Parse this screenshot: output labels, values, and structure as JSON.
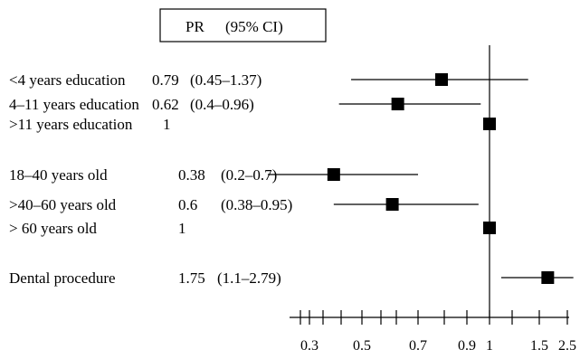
{
  "chart_data": {
    "type": "forest",
    "header": {
      "pr_label": "PR",
      "ci_label": "(95% CI)"
    },
    "x_scale": "log",
    "xlim": [
      0.25,
      2.7
    ],
    "reference_value": 1,
    "tick_labels": [
      "0.3",
      "0.5",
      "0.7",
      "0.9",
      "1",
      "1.5",
      "2.5"
    ],
    "tick_values": [
      0.3,
      0.5,
      0.7,
      0.9,
      1.0,
      1.5,
      2.5
    ],
    "rows": [
      {
        "label": "<4 years education",
        "pr_text": "0.79",
        "ci_text": "(0.45–1.37)",
        "pr": 0.79,
        "ci_low": 0.45,
        "ci_high": 1.37
      },
      {
        "label": "4–11 years education",
        "pr_text": "0.62",
        "ci_text": "(0.4–0.96)",
        "pr": 0.62,
        "ci_low": 0.4,
        "ci_high": 0.96
      },
      {
        "label": ">11 years education",
        "pr_text": "1",
        "ci_text": "",
        "pr": 1,
        "ci_low": null,
        "ci_high": null
      },
      {
        "label": "18–40 years old",
        "pr_text": "0.38",
        "ci_text": "(0.2–0.7)",
        "pr": 0.38,
        "ci_low": 0.2,
        "ci_high": 0.7
      },
      {
        "label": ">40–60 years old",
        "pr_text": "0.6",
        "ci_text": "(0.38–0.95)",
        "pr": 0.6,
        "ci_low": 0.38,
        "ci_high": 0.95
      },
      {
        "label": "> 60 years old",
        "pr_text": "1",
        "ci_text": "",
        "pr": 1,
        "ci_low": null,
        "ci_high": null
      },
      {
        "label": "Dental procedure",
        "pr_text": "1.75",
        "ci_text": "(1.1–2.79)",
        "pr": 1.75,
        "ci_low": 1.1,
        "ci_high": 2.79
      }
    ]
  }
}
